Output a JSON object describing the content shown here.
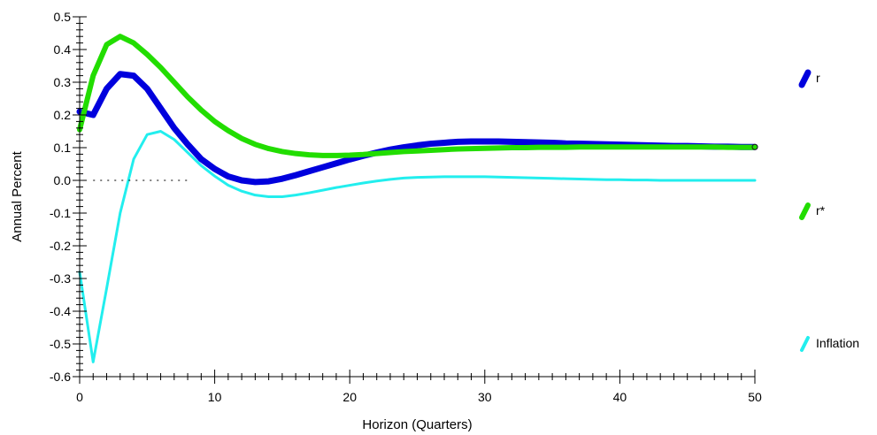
{
  "chart_data": {
    "type": "line",
    "title": "",
    "xlabel": "Horizon (Quarters)",
    "ylabel": "Annual Percent",
    "xlim": [
      0,
      50
    ],
    "ylim": [
      -0.6,
      0.5
    ],
    "xticks": [
      0,
      10,
      20,
      30,
      40,
      50
    ],
    "yticks": [
      -0.6,
      -0.5,
      -0.4,
      -0.3,
      -0.2,
      -0.1,
      0.0,
      0.1,
      0.2,
      0.3,
      0.4,
      0.5
    ],
    "ytick_labels": [
      "-0.6",
      "-0.5",
      "-0.4",
      "-0.3",
      "-0.2",
      "-0.1",
      "0.0",
      "0.1",
      "0.2",
      "0.3",
      "0.4",
      "0.5"
    ],
    "xtick_labels": [
      "0",
      "10",
      "20",
      "30",
      "40",
      "50"
    ],
    "grid": false,
    "zero_line": true,
    "legend_placement": "right",
    "series": [
      {
        "name": "r",
        "color": "#0000dd",
        "width": 7,
        "x": [
          0,
          1,
          2,
          3,
          4,
          5,
          6,
          7,
          8,
          9,
          10,
          11,
          12,
          13,
          14,
          15,
          16,
          17,
          18,
          19,
          20,
          21,
          22,
          23,
          24,
          25,
          26,
          27,
          28,
          29,
          30,
          31,
          32,
          33,
          34,
          35,
          36,
          37,
          38,
          39,
          40,
          41,
          42,
          43,
          44,
          45,
          46,
          47,
          48,
          49,
          50
        ],
        "y": [
          0.21,
          0.2,
          0.28,
          0.325,
          0.32,
          0.28,
          0.22,
          0.16,
          0.11,
          0.065,
          0.035,
          0.012,
          0.0,
          -0.005,
          -0.003,
          0.005,
          0.016,
          0.028,
          0.04,
          0.052,
          0.064,
          0.075,
          0.085,
          0.094,
          0.101,
          0.107,
          0.112,
          0.115,
          0.118,
          0.119,
          0.119,
          0.119,
          0.118,
          0.117,
          0.116,
          0.115,
          0.113,
          0.112,
          0.111,
          0.11,
          0.109,
          0.108,
          0.107,
          0.106,
          0.105,
          0.105,
          0.104,
          0.103,
          0.103,
          0.102,
          0.102
        ]
      },
      {
        "name": "r*",
        "color": "#22dd00",
        "width": 6,
        "x": [
          0,
          1,
          2,
          3,
          4,
          5,
          6,
          7,
          8,
          9,
          10,
          11,
          12,
          13,
          14,
          15,
          16,
          17,
          18,
          19,
          20,
          21,
          22,
          23,
          24,
          25,
          26,
          27,
          28,
          29,
          30,
          31,
          32,
          33,
          34,
          35,
          36,
          37,
          38,
          39,
          40,
          41,
          42,
          43,
          44,
          45,
          46,
          47,
          48,
          49,
          50
        ],
        "y": [
          0.155,
          0.32,
          0.415,
          0.44,
          0.42,
          0.385,
          0.345,
          0.3,
          0.255,
          0.215,
          0.18,
          0.152,
          0.128,
          0.11,
          0.097,
          0.088,
          0.082,
          0.078,
          0.076,
          0.076,
          0.077,
          0.079,
          0.082,
          0.085,
          0.088,
          0.09,
          0.092,
          0.094,
          0.096,
          0.097,
          0.098,
          0.099,
          0.1,
          0.1,
          0.101,
          0.101,
          0.101,
          0.102,
          0.102,
          0.102,
          0.102,
          0.102,
          0.102,
          0.102,
          0.102,
          0.102,
          0.102,
          0.102,
          0.101,
          0.101,
          0.101
        ]
      },
      {
        "name": "Inflation",
        "color": "#22eeee",
        "width": 3,
        "x": [
          0,
          1,
          2,
          3,
          4,
          5,
          6,
          7,
          8,
          9,
          10,
          11,
          12,
          13,
          14,
          15,
          16,
          17,
          18,
          19,
          20,
          21,
          22,
          23,
          24,
          25,
          26,
          27,
          28,
          29,
          30,
          31,
          32,
          33,
          34,
          35,
          36,
          37,
          38,
          39,
          40,
          41,
          42,
          43,
          44,
          45,
          46,
          47,
          48,
          49,
          50
        ],
        "y": [
          -0.28,
          -0.555,
          -0.33,
          -0.1,
          0.065,
          0.14,
          0.15,
          0.125,
          0.085,
          0.045,
          0.013,
          -0.015,
          -0.033,
          -0.045,
          -0.05,
          -0.05,
          -0.045,
          -0.038,
          -0.03,
          -0.022,
          -0.015,
          -0.008,
          -0.002,
          0.003,
          0.007,
          0.009,
          0.01,
          0.011,
          0.011,
          0.011,
          0.011,
          0.01,
          0.009,
          0.008,
          0.007,
          0.006,
          0.005,
          0.004,
          0.003,
          0.002,
          0.002,
          0.001,
          0.001,
          0.0,
          0.0,
          0.0,
          0.0,
          0.0,
          0.0,
          0.0,
          0.0
        ]
      }
    ]
  }
}
